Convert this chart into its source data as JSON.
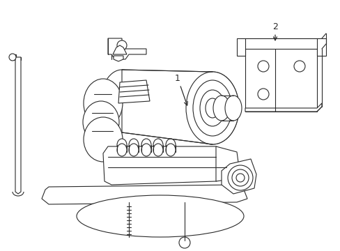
{
  "background_color": "#ffffff",
  "line_color": "#2a2a2a",
  "line_width": 0.8,
  "figure_width": 4.89,
  "figure_height": 3.6,
  "dpi": 100,
  "label_1_text": "1",
  "label_2_text": "2"
}
